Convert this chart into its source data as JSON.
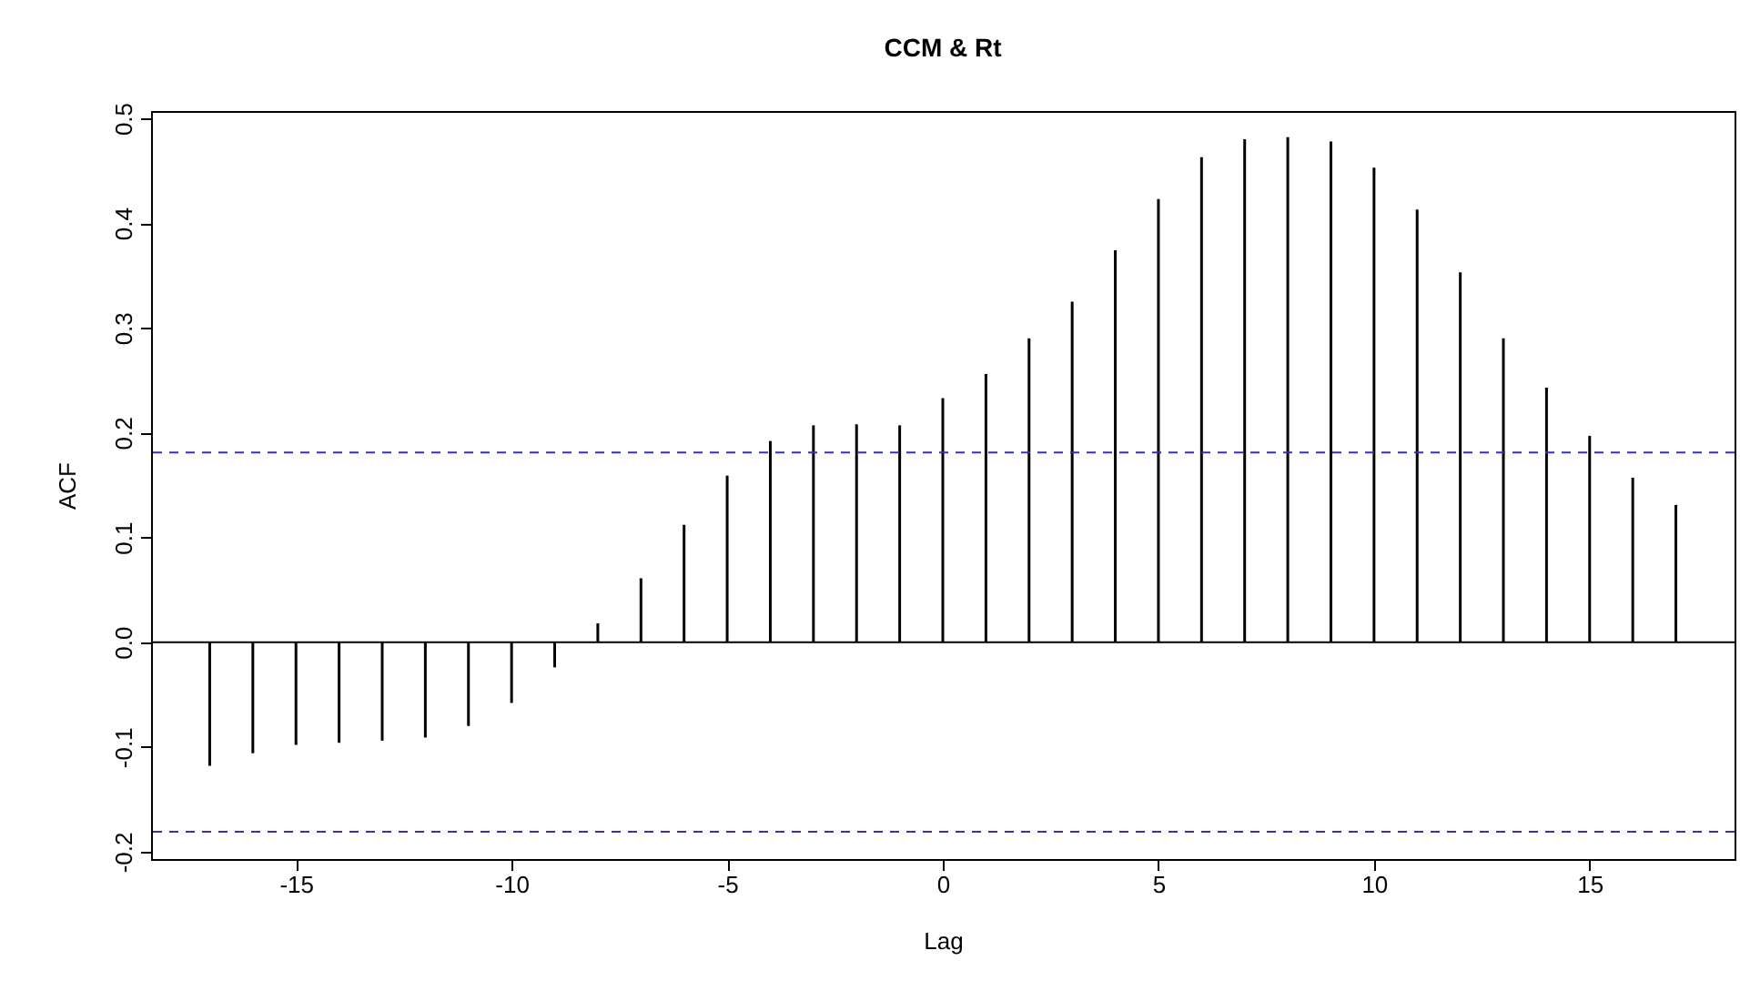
{
  "chart_data": {
    "type": "bar",
    "title": "CCM & Rt",
    "xlabel": "Lag",
    "ylabel": "ACF",
    "x": [
      -17,
      -16,
      -15,
      -14,
      -13,
      -12,
      -11,
      -10,
      -9,
      -8,
      -7,
      -6,
      -5,
      -4,
      -3,
      -2,
      -1,
      0,
      1,
      2,
      3,
      4,
      5,
      6,
      7,
      8,
      9,
      10,
      11,
      12,
      13,
      14,
      15,
      16,
      17
    ],
    "values": [
      -0.118,
      -0.106,
      -0.098,
      -0.096,
      -0.094,
      -0.091,
      -0.08,
      -0.058,
      -0.024,
      0.018,
      0.061,
      0.112,
      0.159,
      0.192,
      0.207,
      0.208,
      0.207,
      0.233,
      0.256,
      0.29,
      0.325,
      0.374,
      0.423,
      0.463,
      0.48,
      0.482,
      0.478,
      0.453,
      0.413,
      0.353,
      0.29,
      0.243,
      0.197,
      0.157,
      0.131
    ],
    "color": "#000000",
    "xlim": [
      -18.36,
      18.36
    ],
    "xticks": [
      -15,
      -10,
      -5,
      0,
      5,
      10,
      15
    ],
    "ylim": [
      -0.207,
      0.507
    ],
    "yticks": [
      -0.2,
      -0.1,
      {
        "value": 0,
        "label": "0.0"
      },
      0.1,
      0.2,
      0.3,
      0.4,
      0.5
    ],
    "ref_lines": [
      {
        "axis": "y",
        "value": 0.181,
        "color": "#3333aa",
        "line_style": "dashed"
      },
      {
        "axis": "y",
        "value": -0.181,
        "color": "#3333aa",
        "line_style": "dashed"
      },
      {
        "axis": "y",
        "value": 0,
        "color": "#000000",
        "line_style": "solid"
      }
    ],
    "grid": false
  }
}
